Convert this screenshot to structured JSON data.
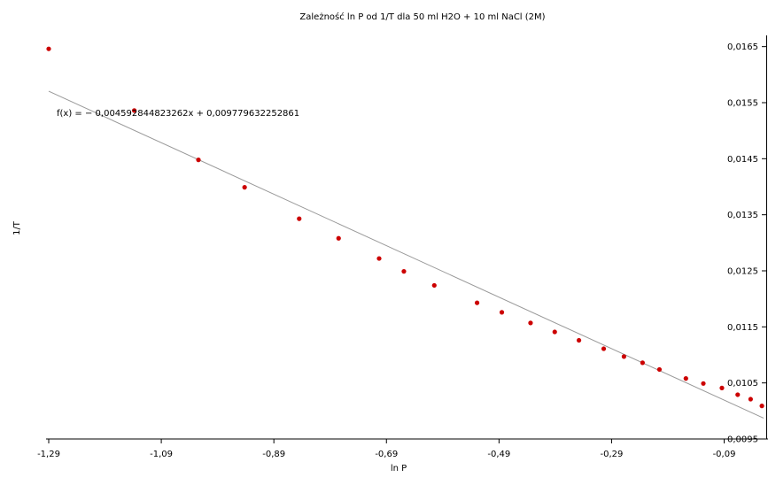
{
  "chart_data": {
    "type": "scatter",
    "title": "Zależność ln P od 1/T dla 50 ml H2O + 10 ml NaCl (2M)",
    "xlabel": "ln P",
    "ylabel": "1/T",
    "xlim": [
      -1.29,
      -0.02
    ],
    "ylim": [
      0.0095,
      0.0167
    ],
    "x_ticks": [
      "-1,29",
      "-1,09",
      "-0,89",
      "-0,69",
      "-0,49",
      "-0,29",
      "-0,09"
    ],
    "y_ticks": [
      "0,0165",
      "0,0155",
      "0,0145",
      "0,0135",
      "0,0125",
      "0,0115",
      "0,0105",
      "0,0095"
    ],
    "x_tick_values": [
      -1.29,
      -1.09,
      -0.89,
      -0.69,
      -0.49,
      -0.29,
      -0.09
    ],
    "y_tick_values": [
      0.0165,
      0.0155,
      0.0145,
      0.0135,
      0.0125,
      0.0115,
      0.0105,
      0.0095
    ],
    "grid": false,
    "annotation": "f(x) = − 0,004592844823262x + 0,009779632252861",
    "colors": {
      "points": "#cc0000",
      "trendline": "#999999",
      "axis": "#000000"
    },
    "series": [
      {
        "points": [
          [
            -1.29,
            0.01646
          ],
          [
            -1.138,
            0.01536
          ],
          [
            -1.024,
            0.01448
          ],
          [
            -0.942,
            0.01399
          ],
          [
            -0.845,
            0.01343
          ],
          [
            -0.775,
            0.01308
          ],
          [
            -0.703,
            0.01272
          ],
          [
            -0.659,
            0.01249
          ],
          [
            -0.605,
            0.01224
          ],
          [
            -0.529,
            0.01193
          ],
          [
            -0.485,
            0.01176
          ],
          [
            -0.434,
            0.01157
          ],
          [
            -0.391,
            0.01141
          ],
          [
            -0.348,
            0.01126
          ],
          [
            -0.304,
            0.01111
          ],
          [
            -0.268,
            0.01097
          ],
          [
            -0.235,
            0.01086
          ],
          [
            -0.205,
            0.01074
          ],
          [
            -0.158,
            0.01058
          ],
          [
            -0.127,
            0.01049
          ],
          [
            -0.094,
            0.01041
          ],
          [
            -0.066,
            0.01029
          ],
          [
            -0.043,
            0.01021
          ],
          [
            -0.023,
            0.01009
          ]
        ]
      }
    ],
    "trendline": {
      "slope": -0.004592844823262,
      "intercept": 0.009779632252861,
      "x_range": [
        -1.29,
        -0.02
      ]
    }
  }
}
